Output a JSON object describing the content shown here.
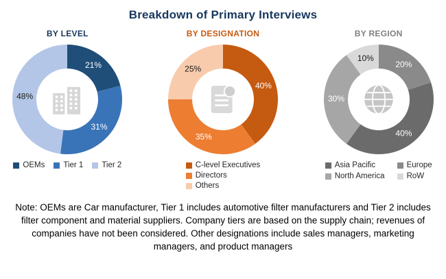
{
  "title": "Breakdown of Primary Interviews",
  "note": "Note: OEMs are Car manufacturer, Tier 1 includes automotive filter manufacturers and Tier 2 includes filter component and material suppliers. Company tiers are based on the supply chain; revenues of companies have not been considered. Other designations include sales managers, marketing managers, and product managers",
  "chart_data": [
    {
      "type": "pie",
      "donut": true,
      "title": "BY LEVEL",
      "title_color": "#17375e",
      "center_icon": "building-icon",
      "legend_position": "bottom",
      "slices": [
        {
          "label": "OEMs",
          "value": 21,
          "color": "#1f4e79",
          "label_color": "#ffffff",
          "legend_order": 1
        },
        {
          "label": "Tier 1",
          "value": 31,
          "color": "#3a74b8",
          "label_color": "#ffffff",
          "legend_order": 2
        },
        {
          "label": "Tier 2",
          "value": 48,
          "color": "#b3c6e7",
          "label_color": "#1a1a1a",
          "legend_order": 3
        }
      ]
    },
    {
      "type": "pie",
      "donut": true,
      "title": "BY DESIGNATION",
      "title_color": "#c55a11",
      "center_icon": "document-icon",
      "legend_position": "bottom",
      "slices": [
        {
          "label": "C-level Executives",
          "value": 40,
          "color": "#c55a11",
          "label_color": "#ffffff",
          "legend_order": 1
        },
        {
          "label": "Directors",
          "value": 35,
          "color": "#ed7d31",
          "label_color": "#ffffff",
          "legend_order": 2
        },
        {
          "label": "Others",
          "value": 25,
          "color": "#f8cbad",
          "label_color": "#1a1a1a",
          "legend_order": 3
        }
      ]
    },
    {
      "type": "pie",
      "donut": true,
      "title": "BY REGION",
      "title_color": "#7f7f7f",
      "center_icon": "globe-icon",
      "legend_position": "bottom",
      "slices": [
        {
          "label": "Europe",
          "value": 20,
          "color": "#8a8a8a",
          "label_color": "#ffffff",
          "legend_order": 2
        },
        {
          "label": "Asia Pacific",
          "value": 40,
          "color": "#6b6b6b",
          "label_color": "#ffffff",
          "legend_order": 1
        },
        {
          "label": "North America",
          "value": 30,
          "color": "#a6a6a6",
          "label_color": "#ffffff",
          "legend_order": 3
        },
        {
          "label": "RoW",
          "value": 10,
          "color": "#d9d9d9",
          "label_color": "#1a1a1a",
          "legend_order": 4
        }
      ]
    }
  ]
}
